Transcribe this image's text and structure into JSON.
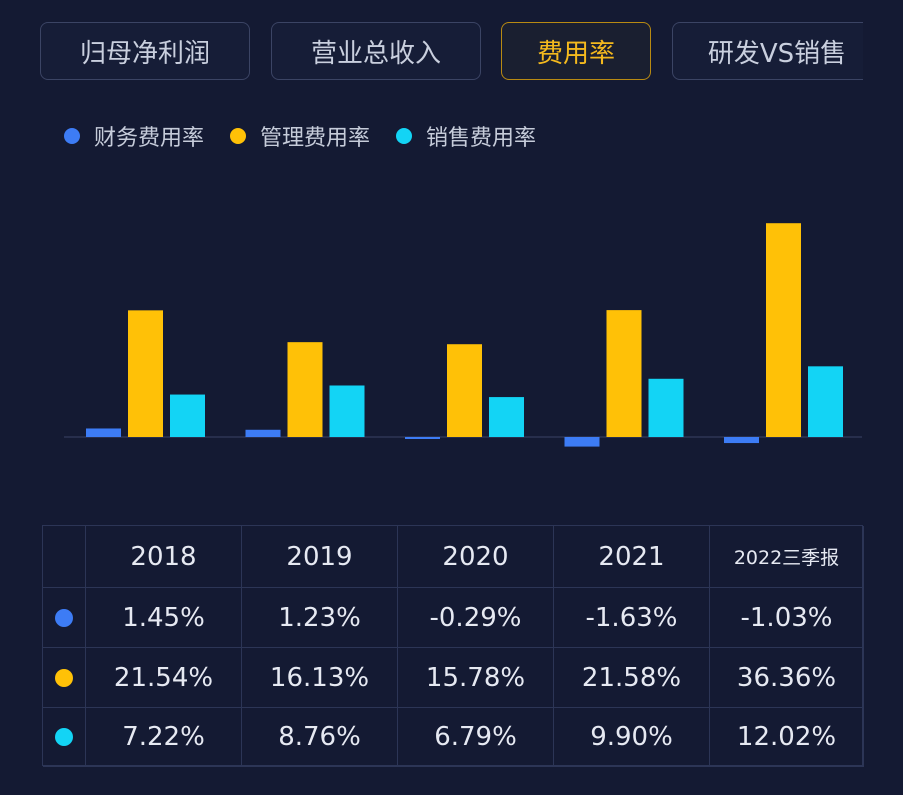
{
  "tabs": [
    {
      "label": "归母净利润",
      "active": false
    },
    {
      "label": "营业总收入",
      "active": false
    },
    {
      "label": "费用率",
      "active": true
    },
    {
      "label": "研发VS销售",
      "active": false
    }
  ],
  "colors": {
    "finance": "#3d7cf5",
    "admin": "#ffc107",
    "sales": "#13d4f5",
    "active_tab": "#f4b91e"
  },
  "chart_data": {
    "type": "bar",
    "categories": [
      "2018",
      "2019",
      "2020",
      "2021",
      "2022三季报"
    ],
    "series": [
      {
        "name": "财务费用率",
        "color": "#3d7cf5",
        "values": [
          1.45,
          1.23,
          -0.29,
          -1.63,
          -1.03
        ]
      },
      {
        "name": "管理费用率",
        "color": "#ffc107",
        "values": [
          21.54,
          16.13,
          15.78,
          21.58,
          36.36
        ]
      },
      {
        "name": "销售费用率",
        "color": "#13d4f5",
        "values": [
          7.22,
          8.76,
          6.79,
          9.9,
          12.02
        ]
      }
    ],
    "legend_position": "top-left",
    "grid": false
  },
  "table": {
    "headers": [
      "2018",
      "2019",
      "2020",
      "2021",
      "2022三季报"
    ],
    "rows": [
      {
        "color": "#3d7cf5",
        "values": [
          "1.45%",
          "1.23%",
          "-0.29%",
          "-1.63%",
          "-1.03%"
        ]
      },
      {
        "color": "#ffc107",
        "values": [
          "21.54%",
          "16.13%",
          "15.78%",
          "21.58%",
          "36.36%"
        ]
      },
      {
        "color": "#13d4f5",
        "values": [
          "7.22%",
          "8.76%",
          "6.79%",
          "9.90%",
          "12.02%"
        ]
      }
    ]
  }
}
